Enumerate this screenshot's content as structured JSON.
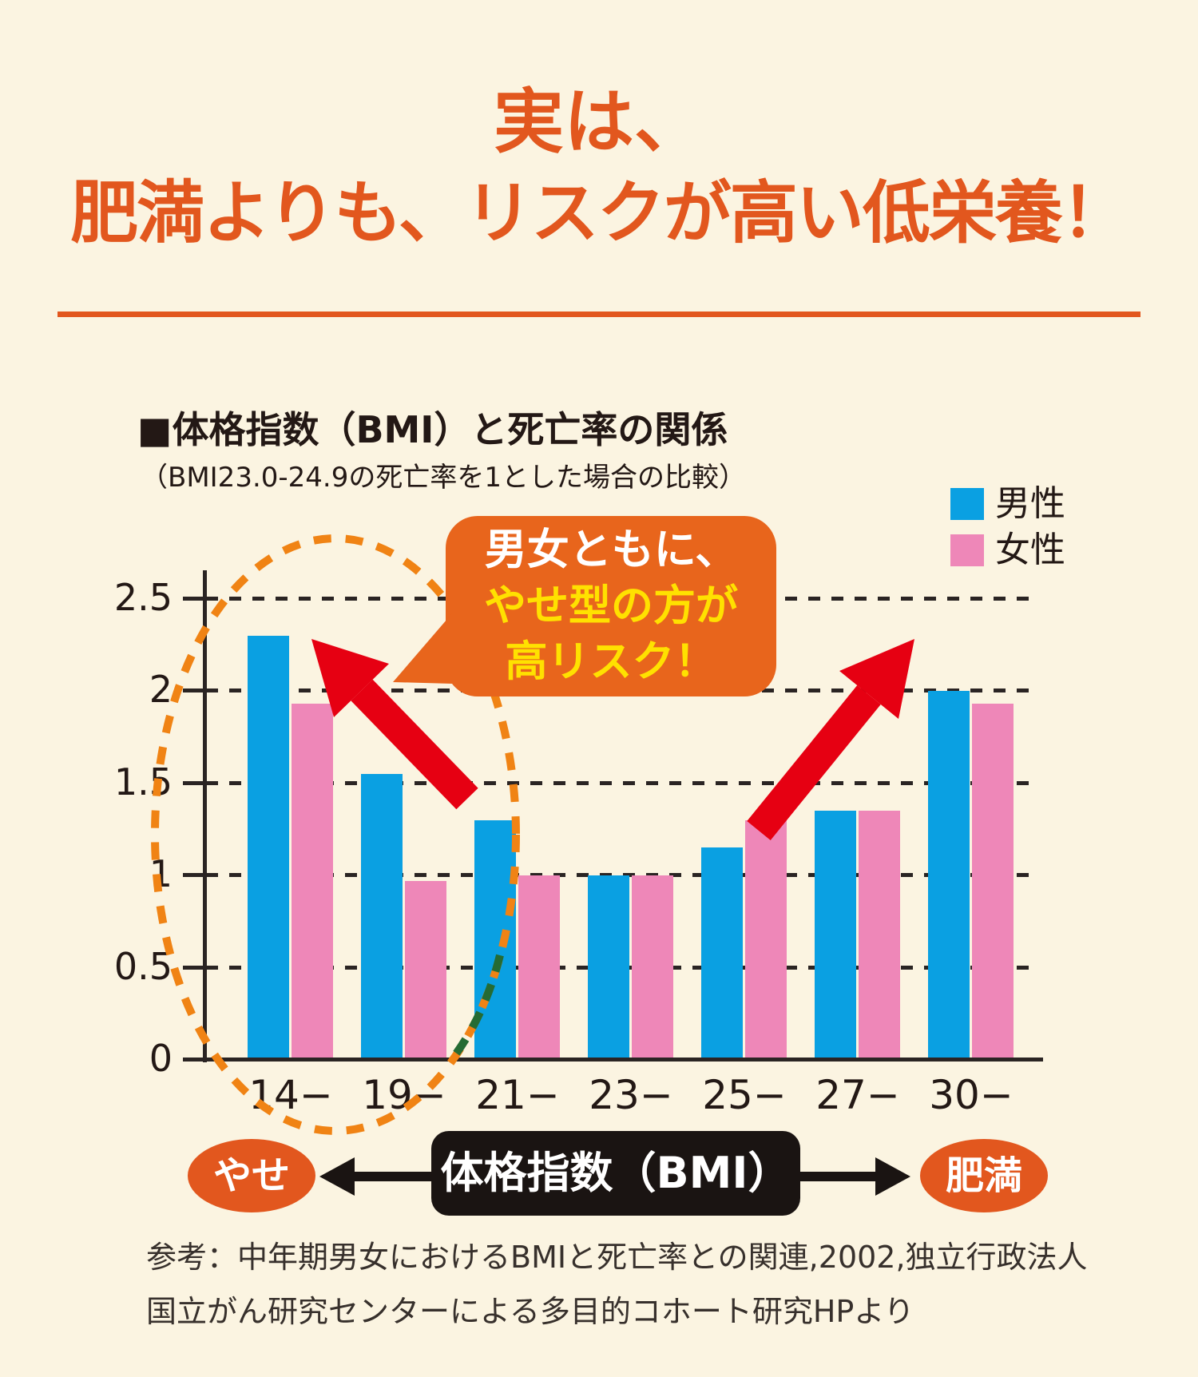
{
  "header": {
    "title_line1": "実は、",
    "title_line2": "肥満よりも、リスクが高い低栄養！"
  },
  "chart": {
    "title": "■体格指数（BMI）と死亡率の関係",
    "subtitle": "（BMI23.0-24.9の死亡率を1とした場合の比較）",
    "callout": {
      "line1": "男女ともに、",
      "line2": "やせ型の方が",
      "line3": "高リスク！"
    },
    "axis_annotation": {
      "left_label": "やせ",
      "center_label": "体格指数（BMI）",
      "right_label": "肥満"
    },
    "source_line1": "参考：中年期男女におけるBMIと死亡率との関連,2002,独立行政法人",
    "source_line2": "国立がん研究センターによる多目的コホート研究HPより"
  },
  "colors": {
    "background": "#FBF4E1",
    "accent_orange": "#E2571E",
    "bubble_orange": "#E8651C",
    "bubble_yellow": "#FFE100",
    "male_blue": "#0AA0E2",
    "female_pink": "#EE87B8",
    "arrow_red": "#E60012",
    "dashed_ellipse_orange": "#F08314",
    "dashed_green": "#256B33",
    "axis_black": "#2A2423",
    "annotation_black": "#1A1412"
  },
  "chart_data": {
    "type": "bar",
    "title": "■体格指数（BMI）と死亡率の関係",
    "subtitle": "（BMI23.0-24.9の死亡率を1とした場合の比較）",
    "categories": [
      "14−",
      "19−",
      "21−",
      "23−",
      "25−",
      "27−",
      "30−"
    ],
    "series": [
      {
        "name": "男性",
        "color": "#0AA0E2",
        "values": [
          2.3,
          1.55,
          1.3,
          1.0,
          1.15,
          1.35,
          2.0
        ]
      },
      {
        "name": "女性",
        "color": "#EE87B8",
        "values": [
          1.93,
          0.97,
          1.0,
          1.0,
          1.3,
          1.35,
          1.93
        ]
      }
    ],
    "ylim": [
      0,
      2.5
    ],
    "y_ticks": [
      2.5,
      2,
      1.5,
      1,
      0.5,
      0
    ],
    "grid": "horizontal-dashed",
    "legend_position": "top-right",
    "xlabel": "体格指数（BMI）",
    "x_axis_left_label": "やせ",
    "x_axis_right_label": "肥満",
    "annotation": "男女ともに、やせ型の方が高リスク！",
    "source": "参考：中年期男女におけるBMIと死亡率との関連,2002,独立行政法人国立がん研究センターによる多目的コホート研究HPより"
  }
}
